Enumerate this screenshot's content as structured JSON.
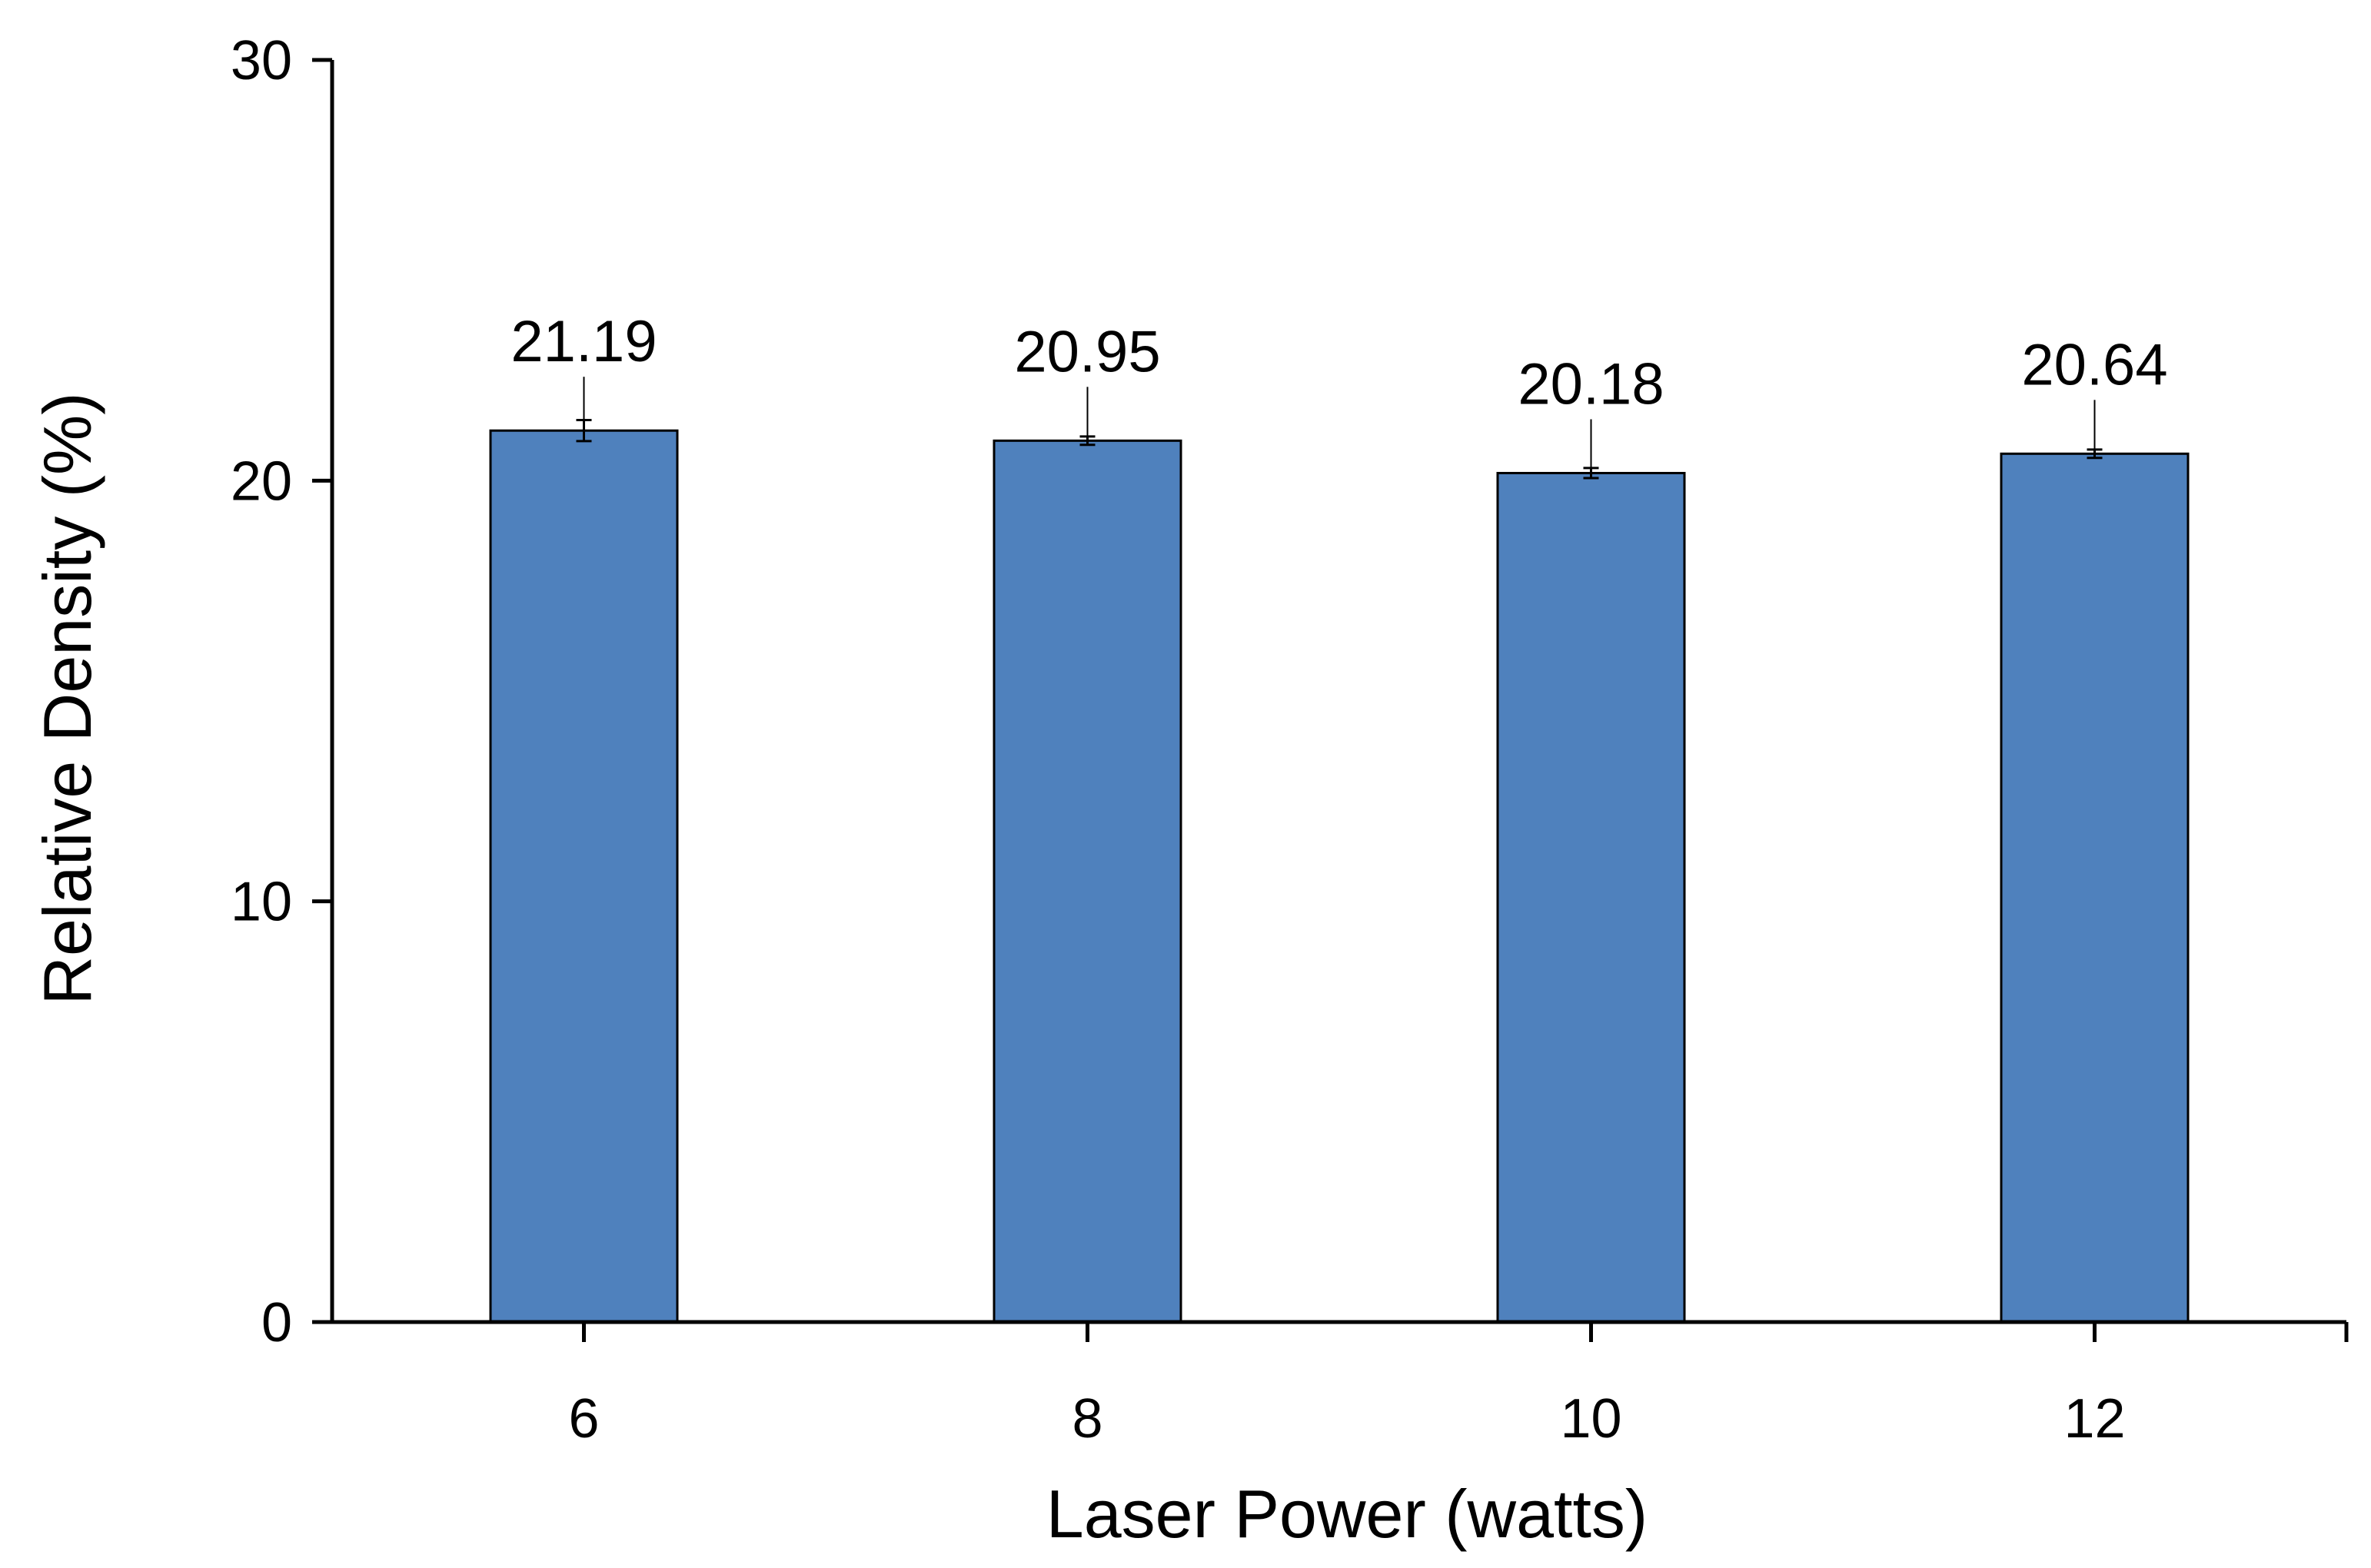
{
  "chart_data": {
    "type": "bar",
    "categories": [
      "6",
      "8",
      "10",
      "12"
    ],
    "series": [
      {
        "values": [
          21.19,
          20.95,
          20.18,
          20.64
        ],
        "error": [
          0.25,
          0.1,
          0.12,
          0.1
        ],
        "data_labels": [
          "21.19",
          "20.95",
          "20.18",
          "20.64"
        ]
      }
    ],
    "xlabel": "Laser Power (watts)",
    "ylabel": "Relative Density (%)",
    "ylim": [
      0,
      30
    ],
    "yticks": [
      "0",
      "10",
      "20",
      "30"
    ],
    "grid": false,
    "legend": "none",
    "bar_color": "#4f81bd"
  }
}
